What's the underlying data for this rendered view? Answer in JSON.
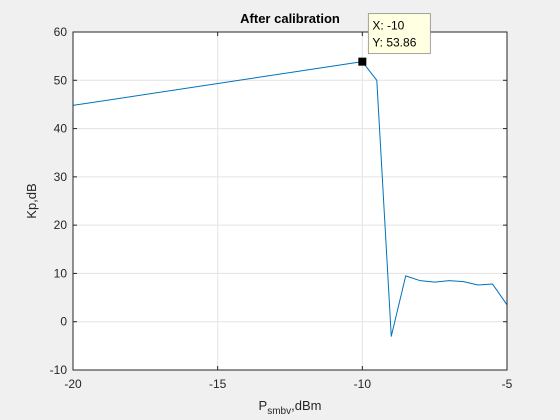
{
  "chart_data": {
    "type": "line",
    "title": "After calibration",
    "xlabel": "P",
    "xlabel_sub": "smbv",
    "xlabel_suffix": ",dBm",
    "ylabel": "Kp,dB",
    "xlim": [
      -20,
      -5
    ],
    "ylim": [
      -10,
      60
    ],
    "xticks": [
      -20,
      -15,
      -10,
      -5
    ],
    "yticks": [
      -10,
      0,
      10,
      20,
      30,
      40,
      50,
      60
    ],
    "grid": true,
    "series": [
      {
        "color": "#0072bd",
        "x": [
          -20,
          -10,
          -9.5,
          -9,
          -8.5,
          -8,
          -7.5,
          -7,
          -6.5,
          -6,
          -5.5,
          -5
        ],
        "y": [
          44.8,
          53.86,
          50.0,
          -3.0,
          9.5,
          8.5,
          8.2,
          8.5,
          8.3,
          7.6,
          7.8,
          3.5
        ]
      }
    ],
    "datatip": {
      "x": -10,
      "y": 53.86,
      "line1": "X: -10",
      "line2": "Y: 53.86"
    }
  }
}
